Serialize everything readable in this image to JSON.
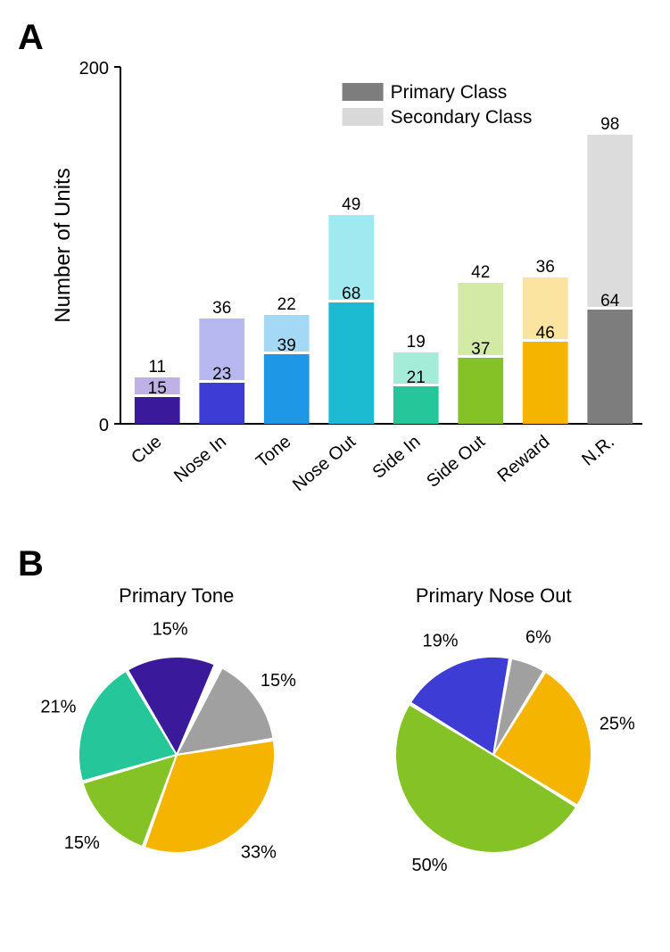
{
  "panelA": {
    "label": "A",
    "ylabel": "Number of Units",
    "ymax": 200,
    "ytick_top": "200",
    "ytick_bottom": "0",
    "legend": {
      "primary": "Primary Class",
      "secondary": "Secondary Class",
      "primary_color": "#7d7d7d",
      "secondary_color": "#d9d9d9"
    },
    "categories": [
      "Cue",
      "Nose In",
      "Tone",
      "Nose Out",
      "Side In",
      "Side Out",
      "Reward",
      "N.R."
    ],
    "primary_values": [
      15,
      23,
      39,
      68,
      21,
      37,
      46,
      64
    ],
    "secondary_values": [
      11,
      36,
      22,
      49,
      19,
      42,
      36,
      98
    ],
    "primary_colors": [
      "#3a1a9b",
      "#3d3dd6",
      "#1e98e6",
      "#1cbbd2",
      "#25c79a",
      "#84c225",
      "#f4b400",
      "#7d7d7d"
    ],
    "secondary_colors": [
      "#bfb1e5",
      "#b8b8f0",
      "#a4d9f6",
      "#a0e9f0",
      "#a4ecd8",
      "#d3e9a6",
      "#fae4a0",
      "#dcdcdc"
    ],
    "label_fontsize": 20,
    "value_fontsize": 19
  },
  "panelB": {
    "label": "B",
    "pies": [
      {
        "title": "Primary Tone",
        "slices": [
          {
            "pct": 15,
            "color": "#a0a0a0",
            "label": "15%"
          },
          {
            "pct": 33,
            "color": "#f4b400",
            "label": "33%"
          },
          {
            "pct": 15,
            "color": "#84c225",
            "label": "15%"
          },
          {
            "pct": 21,
            "color": "#25c79a",
            "label": "21%"
          },
          {
            "pct": 15,
            "color": "#3a1a9b",
            "label": "15%"
          }
        ],
        "start_angle": -63,
        "labels_out": [
          {
            "text": "15%",
            "angle": -36,
            "r": 1.28
          },
          {
            "text": "33%",
            "angle": 50,
            "r": 1.3
          },
          {
            "text": "15%",
            "angle": 137,
            "r": 1.32
          },
          {
            "text": "21%",
            "angle": 202,
            "r": 1.3
          },
          {
            "text": "15%",
            "angle": 267,
            "r": 1.28
          }
        ]
      },
      {
        "title": "Primary Nose Out",
        "slices": [
          {
            "pct": 6,
            "color": "#a0a0a0",
            "label": "6%"
          },
          {
            "pct": 25,
            "color": "#f4b400",
            "label": "25%"
          },
          {
            "pct": 50,
            "color": "#84c225",
            "label": "50%"
          },
          {
            "pct": 19,
            "color": "#3d3dd6",
            "label": "19%"
          }
        ],
        "start_angle": -80,
        "labels_out": [
          {
            "text": "6%",
            "angle": -69,
            "r": 1.28
          },
          {
            "text": "25%",
            "angle": -14,
            "r": 1.3
          },
          {
            "text": "50%",
            "angle": 120,
            "r": 1.3
          },
          {
            "text": "19%",
            "angle": 245,
            "r": 1.28
          }
        ]
      }
    ],
    "pie_radius": 110,
    "label_fontsize": 20
  }
}
